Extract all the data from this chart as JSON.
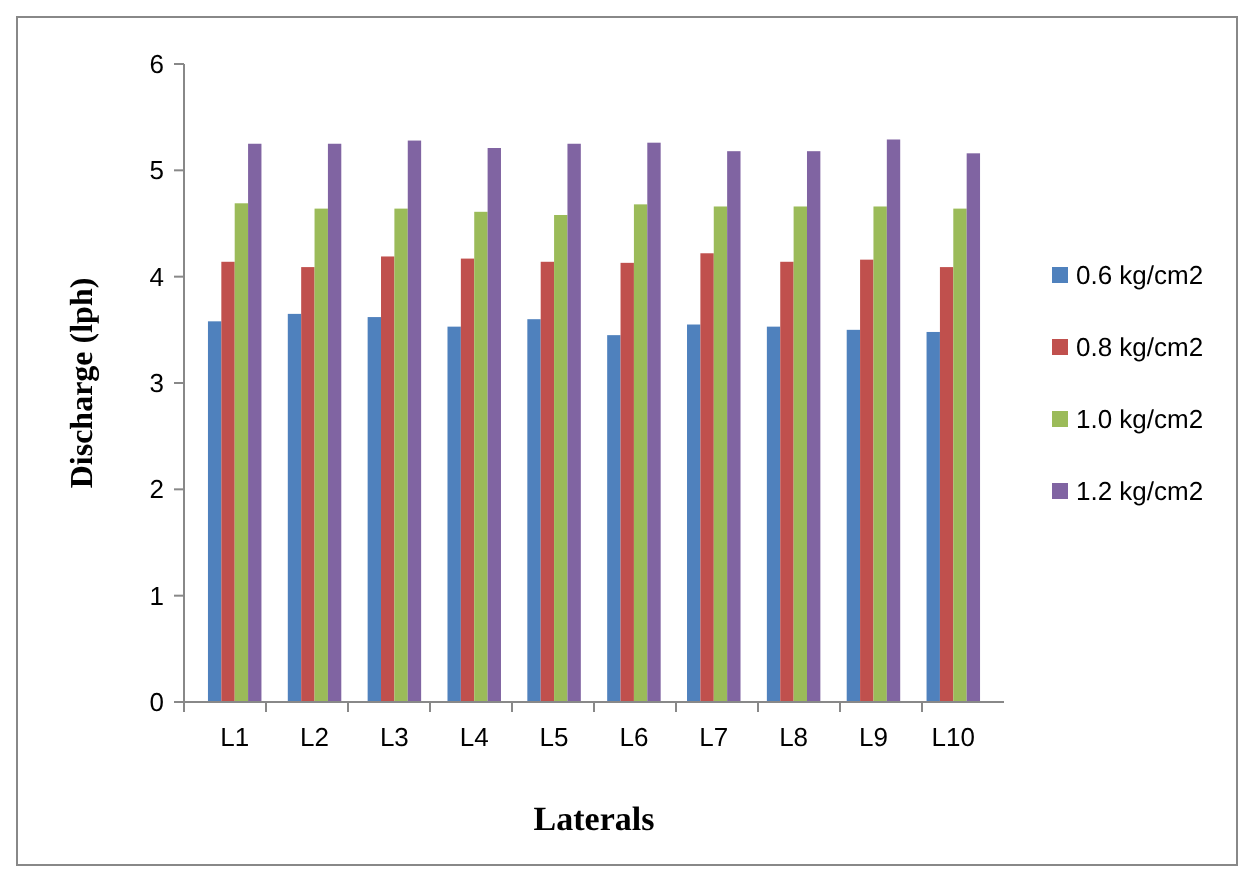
{
  "chart_data": {
    "type": "bar",
    "xlabel": "Laterals",
    "ylabel": "Discharge (lph)",
    "categories": [
      "L1",
      "L2",
      "L3",
      "L4",
      "L5",
      "L6",
      "L7",
      "L8",
      "L9",
      "L10"
    ],
    "series": [
      {
        "name": "0.6 kg/cm2",
        "color": "#4f81bd",
        "values": [
          3.58,
          3.65,
          3.62,
          3.53,
          3.6,
          3.45,
          3.55,
          3.53,
          3.5,
          3.48
        ]
      },
      {
        "name": "0.8 kg/cm2",
        "color": "#c0504d",
        "values": [
          4.14,
          4.09,
          4.19,
          4.17,
          4.14,
          4.13,
          4.22,
          4.14,
          4.16,
          4.09
        ]
      },
      {
        "name": "1.0 kg/cm2",
        "color": "#9bbb59",
        "values": [
          4.69,
          4.64,
          4.64,
          4.61,
          4.58,
          4.68,
          4.66,
          4.66,
          4.66,
          4.64
        ]
      },
      {
        "name": "1.2 kg/cm2",
        "color": "#8064a2",
        "values": [
          5.25,
          5.25,
          5.28,
          5.21,
          5.25,
          5.26,
          5.18,
          5.18,
          5.29,
          5.16
        ]
      }
    ],
    "ylim": [
      0,
      6
    ],
    "yticks": [
      0,
      1,
      2,
      3,
      4,
      5,
      6
    ],
    "grid": false,
    "legend": "right"
  }
}
